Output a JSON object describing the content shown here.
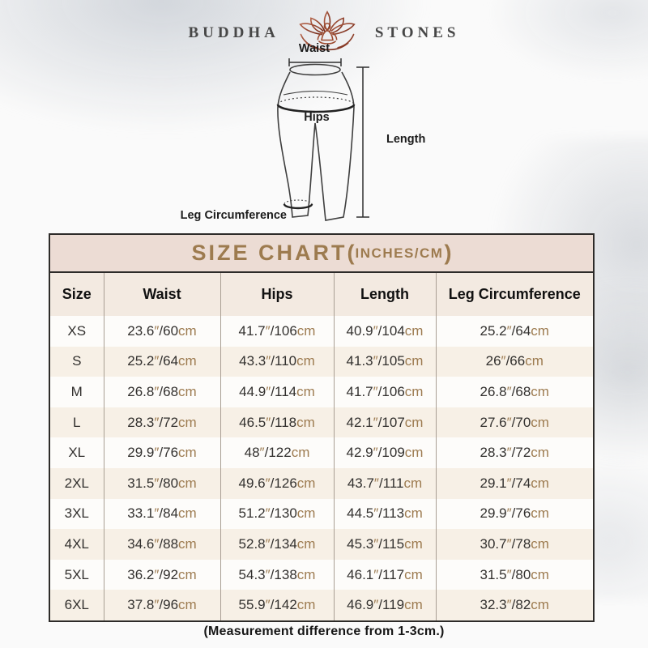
{
  "logo": {
    "left": "BUDDHA",
    "right": "STONES",
    "icon": "lotus-meditation-icon"
  },
  "diagram": {
    "labels": {
      "waist": "Waist",
      "hips": "Hips",
      "length": "Length",
      "leg_circumference": "Leg Circumference"
    }
  },
  "size_chart": {
    "title_main": "SIZE CHART",
    "paren_open": "(",
    "title_sub": "INCHES/CM",
    "paren_close": ")",
    "columns": [
      "Size",
      "Waist",
      "Hips",
      "Length",
      "Leg Circumference"
    ],
    "unit_inch_mark": "″",
    "separator": "/",
    "unit_cm": "cm",
    "rows": [
      {
        "size": "XS",
        "waist": {
          "in": "23.6",
          "cm": "60"
        },
        "hips": {
          "in": "41.7",
          "cm": "106"
        },
        "length": {
          "in": "40.9",
          "cm": "104"
        },
        "leg": {
          "in": "25.2",
          "cm": "64"
        }
      },
      {
        "size": "S",
        "waist": {
          "in": "25.2",
          "cm": "64"
        },
        "hips": {
          "in": "43.3",
          "cm": "110"
        },
        "length": {
          "in": "41.3",
          "cm": "105"
        },
        "leg": {
          "in": "26",
          "cm": "66"
        }
      },
      {
        "size": "M",
        "waist": {
          "in": "26.8",
          "cm": "68"
        },
        "hips": {
          "in": "44.9",
          "cm": "114"
        },
        "length": {
          "in": "41.7",
          "cm": "106"
        },
        "leg": {
          "in": "26.8",
          "cm": "68"
        }
      },
      {
        "size": "L",
        "waist": {
          "in": "28.3",
          "cm": "72"
        },
        "hips": {
          "in": "46.5",
          "cm": "118"
        },
        "length": {
          "in": "42.1",
          "cm": "107"
        },
        "leg": {
          "in": "27.6",
          "cm": "70"
        }
      },
      {
        "size": "XL",
        "waist": {
          "in": "29.9",
          "cm": "76"
        },
        "hips": {
          "in": "48",
          "cm": "122"
        },
        "length": {
          "in": "42.9",
          "cm": "109"
        },
        "leg": {
          "in": "28.3",
          "cm": "72"
        }
      },
      {
        "size": "2XL",
        "waist": {
          "in": "31.5",
          "cm": "80"
        },
        "hips": {
          "in": "49.6",
          "cm": "126"
        },
        "length": {
          "in": "43.7",
          "cm": "111"
        },
        "leg": {
          "in": "29.1",
          "cm": "74"
        }
      },
      {
        "size": "3XL",
        "waist": {
          "in": "33.1",
          "cm": "84"
        },
        "hips": {
          "in": "51.2",
          "cm": "130"
        },
        "length": {
          "in": "44.5",
          "cm": "113"
        },
        "leg": {
          "in": "29.9",
          "cm": "76"
        }
      },
      {
        "size": "4XL",
        "waist": {
          "in": "34.6",
          "cm": "88"
        },
        "hips": {
          "in": "52.8",
          "cm": "134"
        },
        "length": {
          "in": "45.3",
          "cm": "115"
        },
        "leg": {
          "in": "30.7",
          "cm": "78"
        }
      },
      {
        "size": "5XL",
        "waist": {
          "in": "36.2",
          "cm": "92"
        },
        "hips": {
          "in": "54.3",
          "cm": "138"
        },
        "length": {
          "in": "46.1",
          "cm": "117"
        },
        "leg": {
          "in": "31.5",
          "cm": "80"
        }
      },
      {
        "size": "6XL",
        "waist": {
          "in": "37.8",
          "cm": "96"
        },
        "hips": {
          "in": "55.9",
          "cm": "142"
        },
        "length": {
          "in": "46.9",
          "cm": "119"
        },
        "leg": {
          "in": "32.3",
          "cm": "82"
        }
      }
    ]
  },
  "footer": {
    "note": "(Measurement difference from 1-3cm.)"
  },
  "colors": {
    "accent_brown": "#9d7b4f",
    "title_band_bg": "#ecdcd4",
    "header_row_bg": "#f3eae1",
    "row_alt_bg": "#f7f0e6",
    "unit_tan": "#9d7b50",
    "text_dark": "#32302e",
    "lotus_red": "#9c4a2f"
  }
}
